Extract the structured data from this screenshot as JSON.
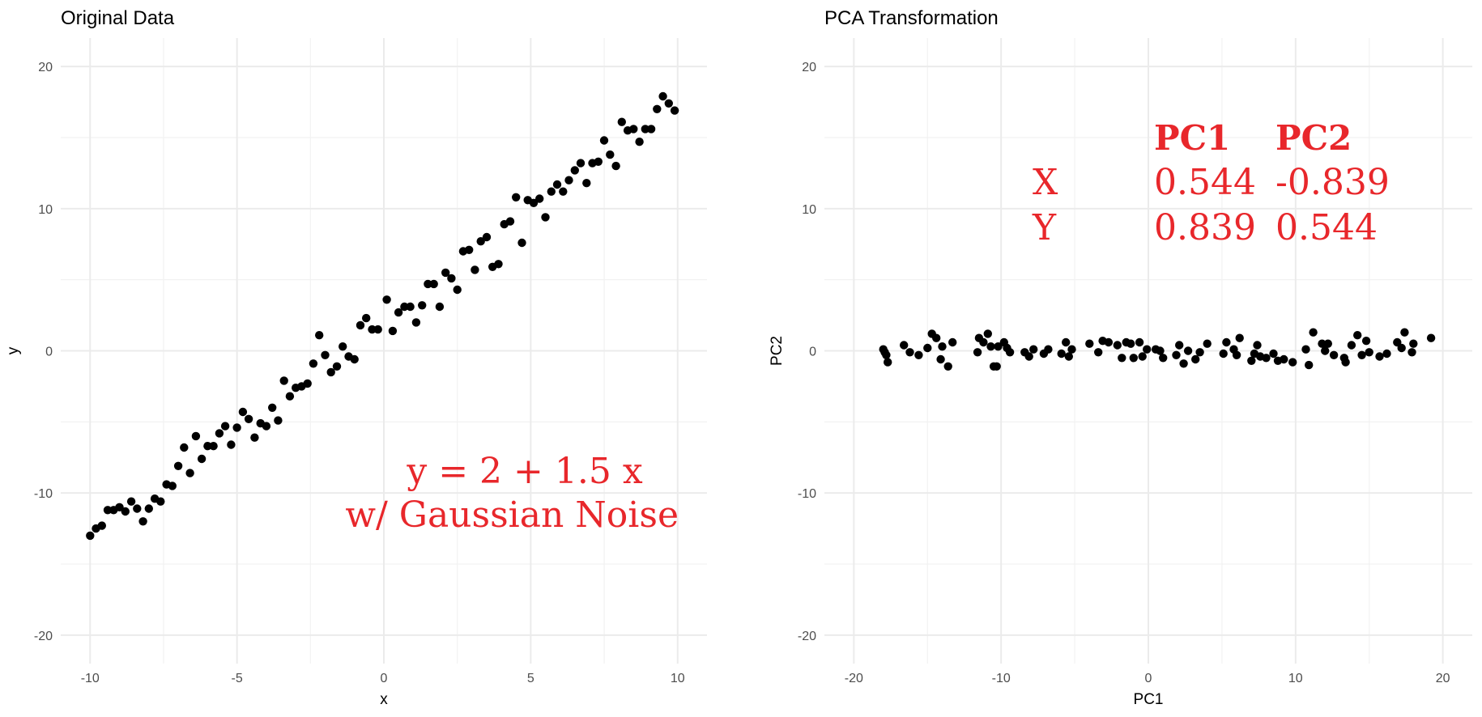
{
  "chart_data": [
    {
      "type": "scatter",
      "title": "Original Data",
      "xlabel": "x",
      "ylabel": "y",
      "xlim": [
        -11,
        11
      ],
      "ylim": [
        -22,
        22
      ],
      "xticks": [
        -10,
        -5,
        0,
        5,
        10
      ],
      "yticks": [
        -20,
        -10,
        0,
        10,
        20
      ],
      "xtick_labels": [
        "-10",
        "-5",
        "0",
        "5",
        "10"
      ],
      "ytick_labels": [
        "-20",
        "-10",
        "0",
        "10",
        "20"
      ],
      "grid": true,
      "point_color": "#000000",
      "annotation_color": "#e8272b",
      "annotation": [
        "y = 2 + 1.5 x",
        "w/ Gaussian Noise"
      ],
      "points": [
        [
          -10.0,
          -13.0
        ],
        [
          -9.8,
          -12.5
        ],
        [
          -9.6,
          -12.3
        ],
        [
          -9.4,
          -11.2
        ],
        [
          -9.2,
          -11.2
        ],
        [
          -9.0,
          -11.0
        ],
        [
          -8.8,
          -11.3
        ],
        [
          -8.6,
          -10.6
        ],
        [
          -8.4,
          -11.1
        ],
        [
          -8.2,
          -12.0
        ],
        [
          -8.0,
          -11.1
        ],
        [
          -7.8,
          -10.4
        ],
        [
          -7.6,
          -10.6
        ],
        [
          -7.4,
          -9.4
        ],
        [
          -7.2,
          -9.5
        ],
        [
          -7.0,
          -8.1
        ],
        [
          -6.8,
          -6.8
        ],
        [
          -6.6,
          -8.6
        ],
        [
          -6.4,
          -6.0
        ],
        [
          -6.2,
          -7.6
        ],
        [
          -6.0,
          -6.7
        ],
        [
          -5.8,
          -6.7
        ],
        [
          -5.6,
          -5.8
        ],
        [
          -5.4,
          -5.3
        ],
        [
          -5.2,
          -6.6
        ],
        [
          -5.0,
          -5.4
        ],
        [
          -4.8,
          -4.3
        ],
        [
          -4.6,
          -4.8
        ],
        [
          -4.4,
          -6.1
        ],
        [
          -4.2,
          -5.1
        ],
        [
          -4.0,
          -5.3
        ],
        [
          -3.8,
          -4.0
        ],
        [
          -3.6,
          -4.9
        ],
        [
          -3.4,
          -2.1
        ],
        [
          -3.2,
          -3.2
        ],
        [
          -3.0,
          -2.6
        ],
        [
          -2.8,
          -2.5
        ],
        [
          -2.6,
          -2.3
        ],
        [
          -2.4,
          -0.9
        ],
        [
          -2.2,
          1.1
        ],
        [
          -2.0,
          -0.3
        ],
        [
          -1.8,
          -1.5
        ],
        [
          -1.6,
          -1.1
        ],
        [
          -1.4,
          0.3
        ],
        [
          -1.2,
          -0.4
        ],
        [
          -1.0,
          -0.6
        ],
        [
          -0.8,
          1.8
        ],
        [
          -0.6,
          2.3
        ],
        [
          -0.4,
          1.5
        ],
        [
          -0.2,
          1.5
        ],
        [
          0.1,
          3.6
        ],
        [
          0.3,
          1.4
        ],
        [
          0.5,
          2.7
        ],
        [
          0.7,
          3.1
        ],
        [
          0.9,
          3.1
        ],
        [
          1.1,
          2.0
        ],
        [
          1.3,
          3.2
        ],
        [
          1.5,
          4.7
        ],
        [
          1.7,
          4.7
        ],
        [
          1.9,
          3.1
        ],
        [
          2.1,
          5.5
        ],
        [
          2.3,
          5.1
        ],
        [
          2.5,
          4.3
        ],
        [
          2.7,
          7.0
        ],
        [
          2.9,
          7.1
        ],
        [
          3.1,
          5.7
        ],
        [
          3.3,
          7.7
        ],
        [
          3.5,
          8.0
        ],
        [
          3.7,
          5.9
        ],
        [
          3.9,
          6.1
        ],
        [
          4.1,
          8.9
        ],
        [
          4.3,
          9.1
        ],
        [
          4.5,
          10.8
        ],
        [
          4.7,
          7.6
        ],
        [
          4.9,
          10.6
        ],
        [
          5.1,
          10.4
        ],
        [
          5.3,
          10.7
        ],
        [
          5.5,
          9.4
        ],
        [
          5.7,
          11.2
        ],
        [
          5.9,
          11.7
        ],
        [
          6.1,
          11.2
        ],
        [
          6.3,
          12.0
        ],
        [
          6.5,
          12.7
        ],
        [
          6.7,
          13.2
        ],
        [
          6.9,
          11.8
        ],
        [
          7.1,
          13.2
        ],
        [
          7.3,
          13.3
        ],
        [
          7.5,
          14.8
        ],
        [
          7.7,
          13.8
        ],
        [
          7.9,
          13.0
        ],
        [
          8.1,
          16.1
        ],
        [
          8.3,
          15.5
        ],
        [
          8.5,
          15.6
        ],
        [
          8.7,
          14.7
        ],
        [
          8.9,
          15.6
        ],
        [
          9.1,
          15.6
        ],
        [
          9.3,
          17.0
        ],
        [
          9.5,
          17.9
        ],
        [
          9.7,
          17.4
        ],
        [
          9.9,
          16.9
        ]
      ]
    },
    {
      "type": "scatter",
      "title": "PCA Transformation",
      "xlabel": "PC1",
      "ylabel": "PC2",
      "xlim": [
        -22,
        22
      ],
      "ylim": [
        -22,
        22
      ],
      "xticks": [
        -20,
        -10,
        0,
        10,
        20
      ],
      "yticks": [
        -20,
        -10,
        0,
        10,
        20
      ],
      "xtick_labels": [
        "-20",
        "-10",
        "0",
        "10",
        "20"
      ],
      "ytick_labels": [
        "-20",
        "-10",
        "0",
        "10",
        "20"
      ],
      "grid": true,
      "point_color": "#000000",
      "annotation_color": "#e8272b",
      "loadings_table": {
        "headers": [
          "PC1",
          "PC2"
        ],
        "rows": [
          {
            "label": "X",
            "values": [
              "0.544",
              "-0.839"
            ]
          },
          {
            "label": "Y",
            "values": [
              "0.839",
              "0.544"
            ]
          }
        ]
      },
      "points": [
        [
          -18.0,
          0.1
        ],
        [
          -17.9,
          -0.1
        ],
        [
          -17.8,
          -0.3
        ],
        [
          -17.7,
          -0.8
        ],
        [
          -16.6,
          0.4
        ],
        [
          -16.2,
          -0.1
        ],
        [
          -15.6,
          -0.3
        ],
        [
          -15.0,
          0.2
        ],
        [
          -14.7,
          1.2
        ],
        [
          -14.4,
          0.9
        ],
        [
          -14.1,
          -0.6
        ],
        [
          -14.0,
          0.3
        ],
        [
          -13.6,
          -1.1
        ],
        [
          -13.3,
          0.6
        ],
        [
          -11.6,
          -0.1
        ],
        [
          -11.5,
          0.9
        ],
        [
          -11.2,
          0.6
        ],
        [
          -10.9,
          1.2
        ],
        [
          -10.7,
          0.3
        ],
        [
          -10.5,
          -1.1
        ],
        [
          -10.3,
          -1.1
        ],
        [
          -10.2,
          0.3
        ],
        [
          -9.8,
          0.6
        ],
        [
          -9.6,
          0.2
        ],
        [
          -9.4,
          -0.1
        ],
        [
          -8.4,
          -0.1
        ],
        [
          -8.1,
          -0.4
        ],
        [
          -7.8,
          0.1
        ],
        [
          -7.1,
          -0.2
        ],
        [
          -6.8,
          0.1
        ],
        [
          -5.9,
          -0.2
        ],
        [
          -5.6,
          0.6
        ],
        [
          -5.4,
          -0.4
        ],
        [
          -5.2,
          0.1
        ],
        [
          -4.0,
          0.5
        ],
        [
          -3.4,
          -0.1
        ],
        [
          -3.1,
          0.7
        ],
        [
          -2.7,
          0.6
        ],
        [
          -2.1,
          0.4
        ],
        [
          -1.8,
          -0.5
        ],
        [
          -1.5,
          0.6
        ],
        [
          -1.2,
          0.5
        ],
        [
          -1.0,
          -0.5
        ],
        [
          -0.6,
          0.6
        ],
        [
          -0.4,
          -0.4
        ],
        [
          -0.1,
          0.1
        ],
        [
          0.5,
          0.1
        ],
        [
          0.8,
          0.0
        ],
        [
          1.0,
          -0.5
        ],
        [
          1.9,
          -0.3
        ],
        [
          2.1,
          0.4
        ],
        [
          2.4,
          -0.9
        ],
        [
          2.7,
          0.0
        ],
        [
          3.2,
          -0.6
        ],
        [
          3.5,
          -0.1
        ],
        [
          4.0,
          0.5
        ],
        [
          5.1,
          -0.2
        ],
        [
          5.3,
          0.6
        ],
        [
          5.8,
          0.1
        ],
        [
          6.0,
          -0.3
        ],
        [
          6.2,
          0.9
        ],
        [
          7.0,
          -0.7
        ],
        [
          7.2,
          -0.2
        ],
        [
          7.4,
          0.4
        ],
        [
          7.6,
          -0.4
        ],
        [
          8.0,
          -0.5
        ],
        [
          8.5,
          -0.2
        ],
        [
          8.8,
          -0.7
        ],
        [
          9.2,
          -0.6
        ],
        [
          9.8,
          -0.8
        ],
        [
          10.7,
          0.1
        ],
        [
          10.9,
          -1.0
        ],
        [
          11.2,
          1.3
        ],
        [
          11.8,
          0.5
        ],
        [
          12.0,
          0.0
        ],
        [
          12.2,
          0.5
        ],
        [
          12.6,
          -0.3
        ],
        [
          13.3,
          -0.5
        ],
        [
          13.4,
          -0.8
        ],
        [
          13.8,
          0.4
        ],
        [
          14.2,
          1.1
        ],
        [
          14.5,
          -0.3
        ],
        [
          14.8,
          0.7
        ],
        [
          15.0,
          -0.1
        ],
        [
          15.7,
          -0.4
        ],
        [
          16.2,
          -0.2
        ],
        [
          16.9,
          0.6
        ],
        [
          17.2,
          0.2
        ],
        [
          17.4,
          1.3
        ],
        [
          17.9,
          -0.1
        ],
        [
          18.0,
          0.5
        ],
        [
          19.2,
          0.9
        ]
      ]
    }
  ]
}
